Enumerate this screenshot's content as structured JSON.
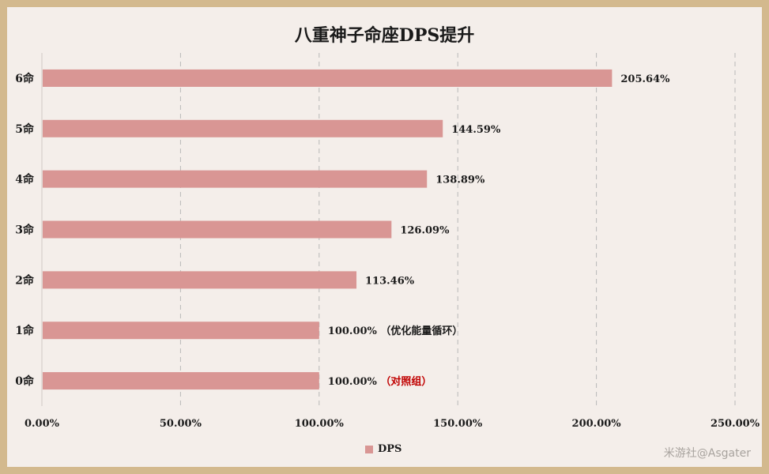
{
  "colors": {
    "bar": "#d99694",
    "grid": "#b8b8b8",
    "annotation_red": "#c00000",
    "background": "#f4eeea",
    "border": "#d3b98e"
  },
  "watermark": "米游社@Asgater",
  "chart_data": {
    "type": "bar",
    "orientation": "horizontal",
    "title": "八重神子命座DPS提升",
    "categories": [
      "6命",
      "5命",
      "4命",
      "3命",
      "2命",
      "1命",
      "0命"
    ],
    "series": [
      {
        "name": "DPS",
        "values": [
          205.64,
          144.59,
          138.89,
          126.09,
          113.46,
          100.0,
          100.0
        ]
      }
    ],
    "data_labels": [
      "205.64%",
      "144.59%",
      "138.89%",
      "126.09%",
      "113.46%",
      "100.00%",
      "100.00%"
    ],
    "annotations": [
      "",
      "",
      "",
      "",
      "",
      "（优化能量循环）",
      "（对照组）"
    ],
    "annotation_colors": [
      "",
      "",
      "",
      "",
      "",
      "#1a1a1a",
      "#c00000"
    ],
    "xlim": [
      0,
      250
    ],
    "xticks": [
      0,
      50,
      100,
      150,
      200,
      250
    ],
    "xtick_labels": [
      "0.00%",
      "50.00%",
      "100.00%",
      "150.00%",
      "200.00%",
      "250.00%"
    ],
    "grid": "vertical dashed",
    "legend": "bottom"
  }
}
